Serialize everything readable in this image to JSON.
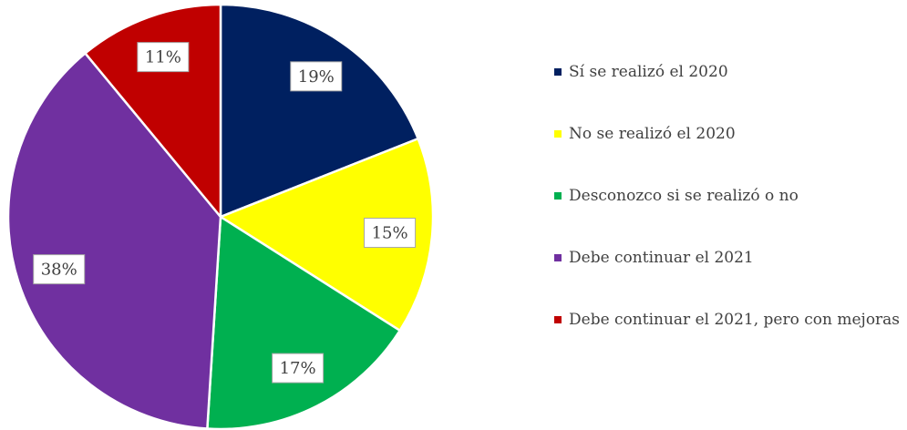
{
  "chart_data": {
    "type": "pie",
    "categories": [
      "Sí se realizó el 2020",
      "No se realizó el 2020",
      "Desconozco si se realizó o no",
      "Debe continuar el 2021",
      "Debe continuar el 2021, pero con mejoras"
    ],
    "values": [
      19,
      15,
      17,
      38,
      11
    ],
    "value_labels": [
      "19%",
      "15%",
      "17%",
      "38%",
      "11%"
    ],
    "colors": [
      "#002060",
      "#ffff00",
      "#00b050",
      "#7030a0",
      "#c00000"
    ],
    "legend": "right"
  }
}
